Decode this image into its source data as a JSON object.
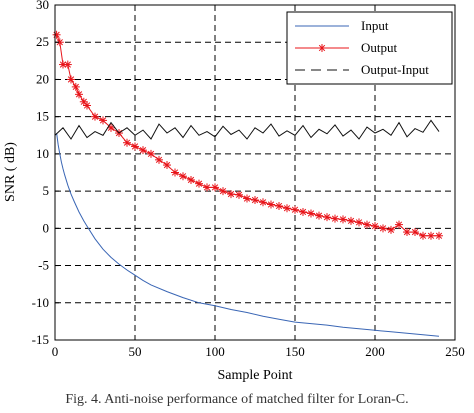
{
  "chart_data": {
    "type": "line",
    "xlabel": "Sample Point",
    "ylabel": "SNR ( dB)",
    "xlim": [
      0,
      250
    ],
    "ylim": [
      -15,
      30
    ],
    "xticks": [
      0,
      50,
      100,
      150,
      200,
      250
    ],
    "yticks": [
      -15,
      -10,
      -5,
      0,
      5,
      10,
      15,
      20,
      25,
      30
    ],
    "grid": true,
    "grid_style": "dashed",
    "legend_position": "top-right",
    "series": [
      {
        "name": "Input",
        "color": "#3a66b5",
        "marker": "none",
        "x": [
          1,
          2,
          3,
          4,
          5,
          6,
          8,
          10,
          12,
          15,
          18,
          20,
          25,
          30,
          35,
          40,
          45,
          50,
          55,
          60,
          70,
          80,
          90,
          100,
          110,
          120,
          130,
          140,
          150,
          160,
          170,
          180,
          190,
          200,
          210,
          220,
          230,
          240
        ],
        "y": [
          12.8,
          11.2,
          10.0,
          8.9,
          8.0,
          7.2,
          5.8,
          4.6,
          3.6,
          2.2,
          1.0,
          0.3,
          -1.4,
          -2.8,
          -3.9,
          -4.8,
          -5.6,
          -6.3,
          -7.0,
          -7.6,
          -8.5,
          -9.3,
          -10.0,
          -10.4,
          -10.9,
          -11.3,
          -11.8,
          -12.2,
          -12.6,
          -12.8,
          -13.0,
          -13.3,
          -13.5,
          -13.7,
          -13.9,
          -14.1,
          -14.3,
          -14.5
        ]
      },
      {
        "name": "Output",
        "color": "#e8141a",
        "marker": "asterisk",
        "x": [
          1,
          3,
          5,
          8,
          10,
          13,
          15,
          18,
          20,
          25,
          30,
          35,
          40,
          45,
          50,
          55,
          60,
          65,
          70,
          75,
          80,
          85,
          90,
          95,
          100,
          105,
          110,
          115,
          120,
          125,
          130,
          135,
          140,
          145,
          150,
          155,
          160,
          165,
          170,
          175,
          180,
          185,
          190,
          195,
          200,
          205,
          210,
          215,
          220,
          225,
          230,
          235,
          240
        ],
        "y": [
          26,
          25,
          22,
          22,
          20,
          19,
          18,
          17,
          16.5,
          15,
          14.5,
          13.5,
          12.8,
          11.5,
          11,
          10.5,
          10,
          9.2,
          8.5,
          7.5,
          7,
          6.5,
          6,
          5.5,
          5.5,
          5,
          4.6,
          4.5,
          4,
          3.8,
          3.5,
          3.2,
          3,
          2.7,
          2.5,
          2.2,
          2,
          1.7,
          1.5,
          1.3,
          1.2,
          1,
          0.8,
          0.5,
          0.3,
          0,
          -0.2,
          0.5,
          -0.5,
          -0.5,
          -1,
          -1,
          -1
        ]
      },
      {
        "name": "Output-Input",
        "color": "#111111",
        "marker": "none",
        "x": [
          0,
          5,
          10,
          15,
          20,
          25,
          30,
          35,
          40,
          45,
          50,
          55,
          60,
          65,
          70,
          75,
          80,
          85,
          90,
          95,
          100,
          105,
          110,
          115,
          120,
          125,
          130,
          135,
          140,
          145,
          150,
          155,
          160,
          165,
          170,
          175,
          180,
          185,
          190,
          195,
          200,
          205,
          210,
          215,
          220,
          225,
          230,
          235,
          240
        ],
        "y": [
          12.5,
          13.5,
          12,
          13.8,
          12.2,
          13,
          12.5,
          14.2,
          12.8,
          13.5,
          12.5,
          13.2,
          12,
          14,
          12.8,
          13.5,
          12.2,
          13.8,
          12.5,
          13,
          12.3,
          13.7,
          12.6,
          13.2,
          12,
          13.5,
          12.8,
          14,
          12.4,
          13.1,
          12.5,
          13.8,
          12.2,
          13.3,
          12.7,
          13.9,
          12.4,
          13.2,
          12,
          13.6,
          12.8,
          13.3,
          12.5,
          14.2,
          12.3,
          13.4,
          12.9,
          14.5,
          13
        ]
      }
    ]
  },
  "caption": "Fig. 4.   Anti-noise performance of matched filter for Loran-C."
}
